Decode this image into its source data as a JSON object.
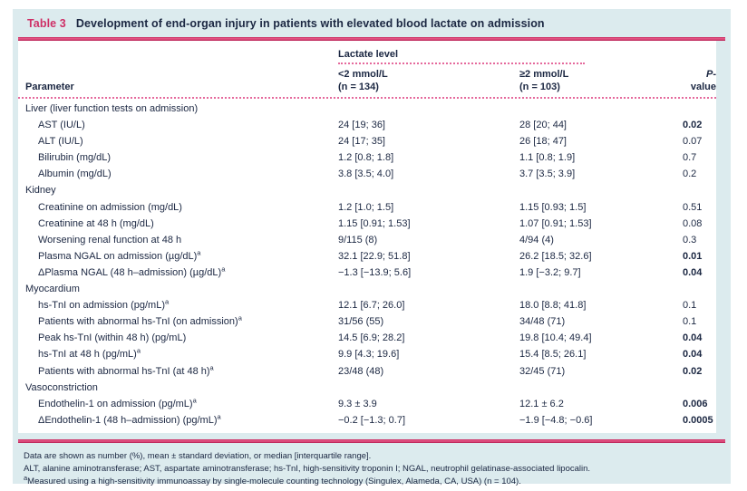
{
  "title": {
    "label": "Table 3",
    "text": "Development of end-organ injury in patients with elevated blood lactate on admission"
  },
  "columns": {
    "parameter": "Parameter",
    "group": "Lactate level",
    "col1": {
      "line1": "<2 mmol/L",
      "line2": "(n = 134)"
    },
    "col2": {
      "line1": "≥2 mmol/L",
      "line2": "(n = 103)"
    },
    "pvalue": {
      "italic": "P",
      "rest": "-value"
    }
  },
  "rows": [
    {
      "type": "section",
      "label": "Liver (liver function tests on admission)"
    },
    {
      "type": "data",
      "label": "AST (IU/L)",
      "v1": "24 [19; 36]",
      "v2": "28 [20; 44]",
      "p": "0.02",
      "p_bold": true
    },
    {
      "type": "data",
      "label": "ALT (IU/L)",
      "v1": "24 [17; 35]",
      "v2": "26 [18; 47]",
      "p": "0.07",
      "p_bold": false
    },
    {
      "type": "data",
      "label": "Bilirubin (mg/dL)",
      "v1": "1.2 [0.8; 1.8]",
      "v2": "1.1 [0.8; 1.9]",
      "p": "0.7",
      "p_bold": false
    },
    {
      "type": "data",
      "label": "Albumin (mg/dL)",
      "v1": "3.8 [3.5; 4.0]",
      "v2": "3.7 [3.5; 3.9]",
      "p": "0.2",
      "p_bold": false
    },
    {
      "type": "section",
      "label": "Kidney"
    },
    {
      "type": "data",
      "label": "Creatinine on admission (mg/dL)",
      "v1": "1.2 [1.0; 1.5]",
      "v2": "1.15 [0.93; 1.5]",
      "p": "0.51",
      "p_bold": false
    },
    {
      "type": "data",
      "label": "Creatinine at 48 h (mg/dL)",
      "v1": "1.15 [0.91; 1.53]",
      "v2": "1.07 [0.91; 1.53]",
      "p": "0.08",
      "p_bold": false
    },
    {
      "type": "data",
      "label": "Worsening renal function at 48 h",
      "v1": "9/115 (8)",
      "v2": "4/94 (4)",
      "p": "0.3",
      "p_bold": false
    },
    {
      "type": "data",
      "label": "Plasma NGAL on admission (µg/dL)",
      "sup": "a",
      "v1": "32.1 [22.9; 51.8]",
      "v2": "26.2 [18.5; 32.6]",
      "p": "0.01",
      "p_bold": true
    },
    {
      "type": "data",
      "label": "ΔPlasma NGAL (48 h–admission) (µg/dL)",
      "sup": "a",
      "v1": "−1.3 [−13.9; 5.6]",
      "v2": "1.9 [−3.2; 9.7]",
      "p": "0.04",
      "p_bold": true
    },
    {
      "type": "section",
      "label": "Myocardium"
    },
    {
      "type": "data",
      "label": "hs-TnI on admission (pg/mL)",
      "sup": "a",
      "v1": "12.1 [6.7; 26.0]",
      "v2": "18.0 [8.8; 41.8]",
      "p": "0.1",
      "p_bold": false
    },
    {
      "type": "data",
      "label": "Patients with abnormal hs-TnI (on admission)",
      "sup": "a",
      "v1": "31/56 (55)",
      "v2": "34/48 (71)",
      "p": "0.1",
      "p_bold": false
    },
    {
      "type": "data",
      "label": "Peak hs-TnI (within 48 h) (pg/mL)",
      "v1": "14.5 [6.9; 28.2]",
      "v2": "19.8 [10.4; 49.4]",
      "p": "0.04",
      "p_bold": true
    },
    {
      "type": "data",
      "label": "hs-TnI at 48 h (pg/mL)",
      "sup": "a",
      "v1": "9.9 [4.3; 19.6]",
      "v2": "15.4 [8.5; 26.1]",
      "p": "0.04",
      "p_bold": true
    },
    {
      "type": "data",
      "label": "Patients with abnormal hs-TnI (at 48 h)",
      "sup": "a",
      "v1": "23/48 (48)",
      "v2": "32/45 (71)",
      "p": "0.02",
      "p_bold": true
    },
    {
      "type": "section",
      "label": "Vasoconstriction"
    },
    {
      "type": "data",
      "label": "Endothelin-1 on admission (pg/mL)",
      "sup": "a",
      "v1": "9.3 ± 3.9",
      "v2": "12.1 ± 6.2",
      "p": "0.006",
      "p_bold": true
    },
    {
      "type": "data",
      "label": "ΔEndothelin-1 (48 h–admission) (pg/mL)",
      "sup": "a",
      "v1": "−0.2 [−1.3; 0.7]",
      "v2": "−1.9 [−4.8; −0.6]",
      "p": "0.0005",
      "p_bold": true
    }
  ],
  "footnotes": [
    {
      "text": "Data are shown as number (%), mean ± standard deviation, or median [interquartile range]."
    },
    {
      "text": "ALT, alanine aminotransferase; AST, aspartate aminotransferase; hs-TnI, high-sensitivity troponin I; NGAL, neutrophil gelatinase-associated lipocalin."
    },
    {
      "sup": "a",
      "text": "Measured using a high-sensitivity immunoassay by single-molecule counting technology (Singulex, Alameda, CA, USA) (n = 104)."
    }
  ],
  "colors": {
    "accent_pink": "#ce2f66",
    "panel_blue": "#dcebee",
    "text_navy": "#1b2742"
  }
}
